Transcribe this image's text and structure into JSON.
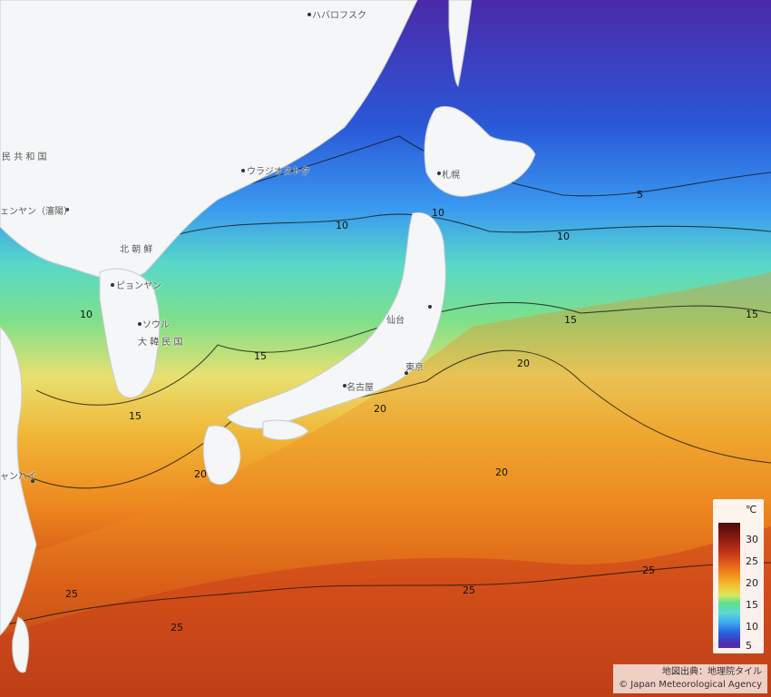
{
  "map": {
    "place_labels": [
      {
        "id": "khabarovsk",
        "text": "ハバロフスク"
      },
      {
        "id": "vladivostok",
        "text": "ウラジオストク"
      },
      {
        "id": "sapporo",
        "text": "札幌"
      },
      {
        "id": "sendai",
        "text": "仙台"
      },
      {
        "id": "tokyo",
        "text": "東京"
      },
      {
        "id": "nagoya",
        "text": "名古屋"
      },
      {
        "id": "pyongyang",
        "text": "ピョンヤン"
      },
      {
        "id": "seoul",
        "text": "ソウル"
      },
      {
        "id": "north_korea",
        "text": "北 朝 鮮"
      },
      {
        "id": "south_korea",
        "text": "大 韓 民 国"
      },
      {
        "id": "china",
        "text": "民 共 和 国"
      },
      {
        "id": "shenyang",
        "text": "ェンヤン（瀋陽）"
      },
      {
        "id": "shanghai",
        "text": "ャンハイ"
      }
    ],
    "contour_labels": [
      {
        "id": "c10a",
        "text": "10"
      },
      {
        "id": "c10b",
        "text": "10"
      },
      {
        "id": "c10c",
        "text": "10"
      },
      {
        "id": "c10d",
        "text": "10"
      },
      {
        "id": "c5",
        "text": "5"
      },
      {
        "id": "c15a",
        "text": "15"
      },
      {
        "id": "c15b",
        "text": "15"
      },
      {
        "id": "c15c",
        "text": "15"
      },
      {
        "id": "c15d",
        "text": "15"
      },
      {
        "id": "c20a",
        "text": "20"
      },
      {
        "id": "c20b",
        "text": "20"
      },
      {
        "id": "c20c",
        "text": "20"
      },
      {
        "id": "c20d",
        "text": "20"
      },
      {
        "id": "c25a",
        "text": "25"
      },
      {
        "id": "c25b",
        "text": "25"
      },
      {
        "id": "c25c",
        "text": "25"
      },
      {
        "id": "c25d",
        "text": "25"
      }
    ]
  },
  "legend": {
    "unit": "℃",
    "ticks": [
      "30",
      "25",
      "20",
      "15",
      "10",
      "5"
    ],
    "colors": [
      "#5a2aa8",
      "#2a60e0",
      "#3aa8f0",
      "#5ed8d8",
      "#5ee08a",
      "#d8e860",
      "#f4c030",
      "#ee7a1a",
      "#c8381a",
      "#8a1a10",
      "#4a0a0a"
    ]
  },
  "attribution": {
    "line1": "地図出典：地理院タイル",
    "line2": "© Japan Meteorological Agency"
  }
}
